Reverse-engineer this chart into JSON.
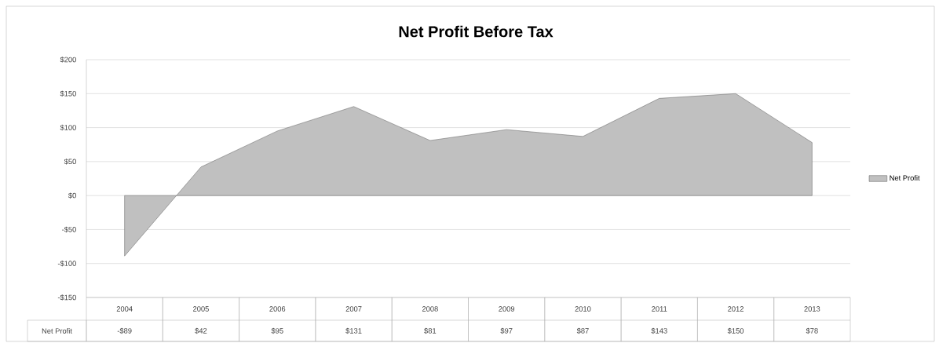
{
  "chart_data": {
    "type": "area",
    "title": "Net Profit Before Tax",
    "categories": [
      "2004",
      "2005",
      "2006",
      "2007",
      "2008",
      "2009",
      "2010",
      "2011",
      "2012",
      "2013"
    ],
    "series": [
      {
        "name": "Net Profit",
        "color": "#c0c0c0",
        "values": [
          -89,
          42,
          95,
          131,
          81,
          97,
          87,
          143,
          150,
          78
        ],
        "value_labels": [
          "-$89",
          "$42",
          "$95",
          "$131",
          "$81",
          "$97",
          "$87",
          "$143",
          "$150",
          "$78"
        ]
      }
    ],
    "ylim": [
      -150,
      200
    ],
    "yticks": [
      {
        "value": -150,
        "label": "-$150"
      },
      {
        "value": -100,
        "label": "-$100"
      },
      {
        "value": -50,
        "label": "-$50"
      },
      {
        "value": 0,
        "label": "$0"
      },
      {
        "value": 50,
        "label": "$50"
      },
      {
        "value": 100,
        "label": "$100"
      },
      {
        "value": 150,
        "label": "$150"
      },
      {
        "value": 200,
        "label": "$200"
      }
    ],
    "grid": "y",
    "legend": "right",
    "line_style": "solid"
  }
}
